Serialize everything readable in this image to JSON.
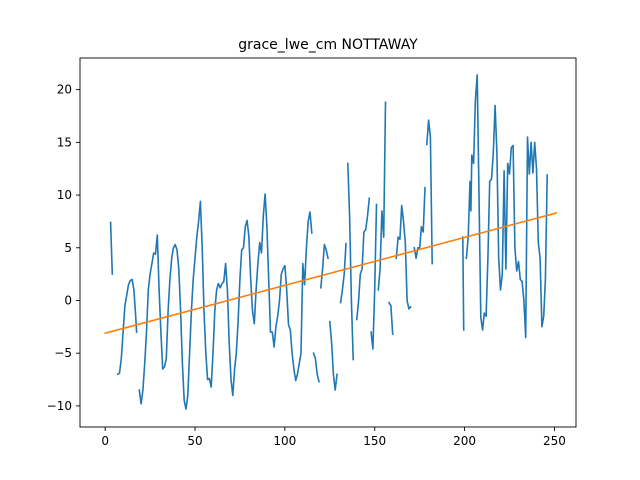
{
  "chart_data": {
    "type": "line",
    "title": "grace_lwe_cm NOTTAWAY",
    "xlabel": "",
    "ylabel": "",
    "xlim": [
      -14,
      262
    ],
    "ylim": [
      -12,
      23
    ],
    "xticks": [
      0,
      50,
      100,
      150,
      200,
      250
    ],
    "yticks": [
      -10,
      -5,
      0,
      5,
      10,
      15,
      20
    ],
    "grid": false,
    "series": [
      {
        "color": "#1f77b4",
        "segments": [
          [
            [
              3,
              7.4
            ],
            [
              4,
              2.5
            ]
          ],
          [
            [
              7,
              -7
            ],
            [
              8,
              -6.9
            ],
            [
              9,
              -5.5
            ],
            [
              10,
              -3
            ],
            [
              11,
              -0.5
            ],
            [
              12,
              0.5
            ],
            [
              13,
              1.5
            ],
            [
              14,
              1.9
            ],
            [
              15,
              2
            ],
            [
              16,
              1
            ],
            [
              17,
              -1.5
            ],
            [
              17.5,
              -3
            ]
          ],
          [
            [
              19,
              -8.5
            ],
            [
              20,
              -9.8
            ],
            [
              21,
              -8.5
            ],
            [
              22,
              -6
            ],
            [
              23,
              -3
            ],
            [
              24,
              1
            ],
            [
              25,
              2.5
            ],
            [
              26,
              3.5
            ],
            [
              27,
              4.5
            ],
            [
              28,
              4.4
            ],
            [
              29,
              6.2
            ],
            [
              30,
              1
            ],
            [
              31,
              -3
            ],
            [
              32,
              -6.5
            ],
            [
              33,
              -6.3
            ],
            [
              34,
              -5.5
            ],
            [
              35,
              -1
            ],
            [
              36,
              2
            ],
            [
              37,
              4
            ],
            [
              38,
              5
            ],
            [
              39,
              5.3
            ],
            [
              40,
              4.8
            ],
            [
              41,
              3
            ],
            [
              42,
              -1
            ],
            [
              43,
              -6
            ],
            [
              44,
              -9.5
            ],
            [
              45,
              -10.3
            ],
            [
              46,
              -9
            ],
            [
              47,
              -5
            ],
            [
              48,
              -1
            ],
            [
              49,
              2
            ],
            [
              50,
              4
            ],
            [
              51,
              6
            ],
            [
              52,
              7.5
            ],
            [
              53,
              9.4
            ],
            [
              54,
              5
            ],
            [
              55,
              -1
            ],
            [
              56,
              -5
            ],
            [
              57,
              -7.5
            ],
            [
              58,
              -7.4
            ],
            [
              59,
              -8.2
            ],
            [
              60,
              -5
            ],
            [
              61,
              -1
            ],
            [
              62,
              1
            ],
            [
              63,
              1.6
            ],
            [
              64,
              1.2
            ],
            [
              65,
              1.6
            ],
            [
              66,
              1.8
            ],
            [
              67,
              3.5
            ],
            [
              68,
              1
            ],
            [
              69,
              -4
            ],
            [
              70,
              -7.5
            ],
            [
              71,
              -9
            ],
            [
              72,
              -6.5
            ],
            [
              73,
              -5
            ],
            [
              74,
              -2
            ],
            [
              75,
              2
            ],
            [
              76,
              4.8
            ],
            [
              77,
              5
            ],
            [
              78,
              7
            ],
            [
              79,
              7.6
            ],
            [
              80,
              6
            ],
            [
              81,
              2
            ],
            [
              82,
              -1
            ],
            [
              83,
              -2.2
            ],
            [
              84,
              1
            ],
            [
              85,
              3.5
            ],
            [
              86,
              5.5
            ],
            [
              87,
              4.5
            ],
            [
              88,
              8
            ],
            [
              89,
              10.1
            ],
            [
              90,
              7
            ],
            [
              91,
              2
            ],
            [
              92,
              -3
            ],
            [
              93,
              -3
            ],
            [
              94,
              -4.4
            ],
            [
              95,
              -2.5
            ],
            [
              96,
              -1.5
            ],
            [
              97,
              0
            ],
            [
              98,
              2.5
            ],
            [
              99,
              3
            ],
            [
              100,
              3.3
            ],
            [
              101,
              1
            ],
            [
              102,
              -2.3
            ],
            [
              103,
              -2.8
            ],
            [
              104,
              -5
            ],
            [
              105,
              -6.5
            ],
            [
              106,
              -7.6
            ],
            [
              107,
              -7
            ],
            [
              108,
              -6
            ],
            [
              109,
              -5
            ],
            [
              110,
              3.5
            ],
            [
              111,
              1.5
            ],
            [
              112,
              5
            ],
            [
              113,
              7.5
            ],
            [
              114,
              8.4
            ],
            [
              115,
              6.4
            ]
          ],
          [
            [
              116,
              -5
            ],
            [
              117,
              -5.5
            ],
            [
              118,
              -7
            ],
            [
              119,
              -7.7
            ]
          ],
          [
            [
              120,
              1.2
            ],
            [
              121,
              3
            ],
            [
              122,
              5.3
            ],
            [
              123,
              4.8
            ],
            [
              124,
              4
            ]
          ],
          [
            [
              125,
              -2
            ],
            [
              126,
              -4
            ],
            [
              127,
              -7
            ],
            [
              128,
              -8.5
            ],
            [
              129,
              -7
            ]
          ],
          [
            [
              131,
              -0.2
            ],
            [
              132,
              1
            ],
            [
              133,
              2.5
            ],
            [
              134,
              5.4
            ]
          ],
          [
            [
              135,
              13
            ],
            [
              136,
              8
            ],
            [
              137,
              0
            ],
            [
              138,
              -5.6
            ]
          ],
          [
            [
              140,
              -1.8
            ],
            [
              141,
              0
            ],
            [
              142,
              2.5
            ],
            [
              143,
              3
            ],
            [
              144,
              6.5
            ],
            [
              145,
              6.7
            ],
            [
              146,
              8
            ],
            [
              147,
              9.7
            ]
          ],
          [
            [
              148,
              -3
            ],
            [
              149,
              -4.6
            ],
            [
              150,
              1
            ],
            [
              151,
              9.1
            ]
          ],
          [
            [
              152,
              1
            ],
            [
              153,
              3
            ],
            [
              154,
              8.5
            ],
            [
              155,
              6
            ],
            [
              156,
              18.8
            ]
          ],
          [
            [
              158,
              -0.2
            ],
            [
              159,
              -0.5
            ],
            [
              160,
              -3.2
            ]
          ],
          [
            [
              162,
              4
            ],
            [
              163,
              6
            ],
            [
              164,
              5.8
            ],
            [
              165,
              9
            ],
            [
              166,
              7.5
            ],
            [
              167,
              5.5
            ],
            [
              168,
              0
            ],
            [
              169,
              -0.8
            ],
            [
              170,
              -0.6
            ]
          ],
          [
            [
              172,
              5
            ],
            [
              173,
              4
            ],
            [
              174,
              5
            ],
            [
              175,
              5
            ],
            [
              176,
              7
            ],
            [
              177,
              6.5
            ],
            [
              178,
              10.7
            ]
          ],
          [
            [
              179,
              14.8
            ],
            [
              180,
              17.1
            ],
            [
              181,
              15.5
            ],
            [
              182,
              3.5
            ]
          ],
          [
            [
              199,
              6
            ],
            [
              199.5,
              -2.8
            ]
          ],
          [
            [
              201,
              4
            ],
            [
              202,
              6
            ],
            [
              203,
              11.3
            ],
            [
              203.5,
              8.5
            ],
            [
              204,
              13.8
            ],
            [
              205,
              13
            ],
            [
              206,
              19
            ],
            [
              207,
              21.4
            ],
            [
              208,
              10
            ],
            [
              209,
              -1.6
            ],
            [
              210,
              -2.8
            ],
            [
              211,
              -1.2
            ],
            [
              212,
              -1.5
            ],
            [
              213,
              4
            ],
            [
              214,
              11.3
            ],
            [
              215,
              11.5
            ],
            [
              216,
              14
            ],
            [
              217,
              18.5
            ],
            [
              218,
              14
            ],
            [
              219,
              4
            ],
            [
              220,
              1
            ],
            [
              221,
              2.5
            ],
            [
              222,
              12.3
            ],
            [
              223,
              3
            ],
            [
              224,
              13
            ],
            [
              225,
              12
            ],
            [
              226,
              14.5
            ],
            [
              227,
              14.7
            ],
            [
              228,
              5
            ],
            [
              229,
              2.8
            ],
            [
              230,
              3.7
            ],
            [
              231,
              2
            ],
            [
              232,
              1.8
            ],
            [
              233,
              0
            ],
            [
              234,
              -3.5
            ],
            [
              235,
              15.5
            ],
            [
              236,
              12
            ],
            [
              237,
              15
            ],
            [
              238,
              12.1
            ],
            [
              239,
              15
            ],
            [
              240,
              12.5
            ],
            [
              241,
              5.5
            ],
            [
              242,
              4
            ],
            [
              243,
              -2.5
            ],
            [
              244,
              -1.5
            ],
            [
              245,
              2
            ],
            [
              246,
              11.9
            ]
          ]
        ]
      },
      {
        "color": "#ff7f0e",
        "segments": [
          [
            [
              0,
              -3.1
            ],
            [
              251,
              8.3
            ]
          ]
        ]
      }
    ]
  }
}
